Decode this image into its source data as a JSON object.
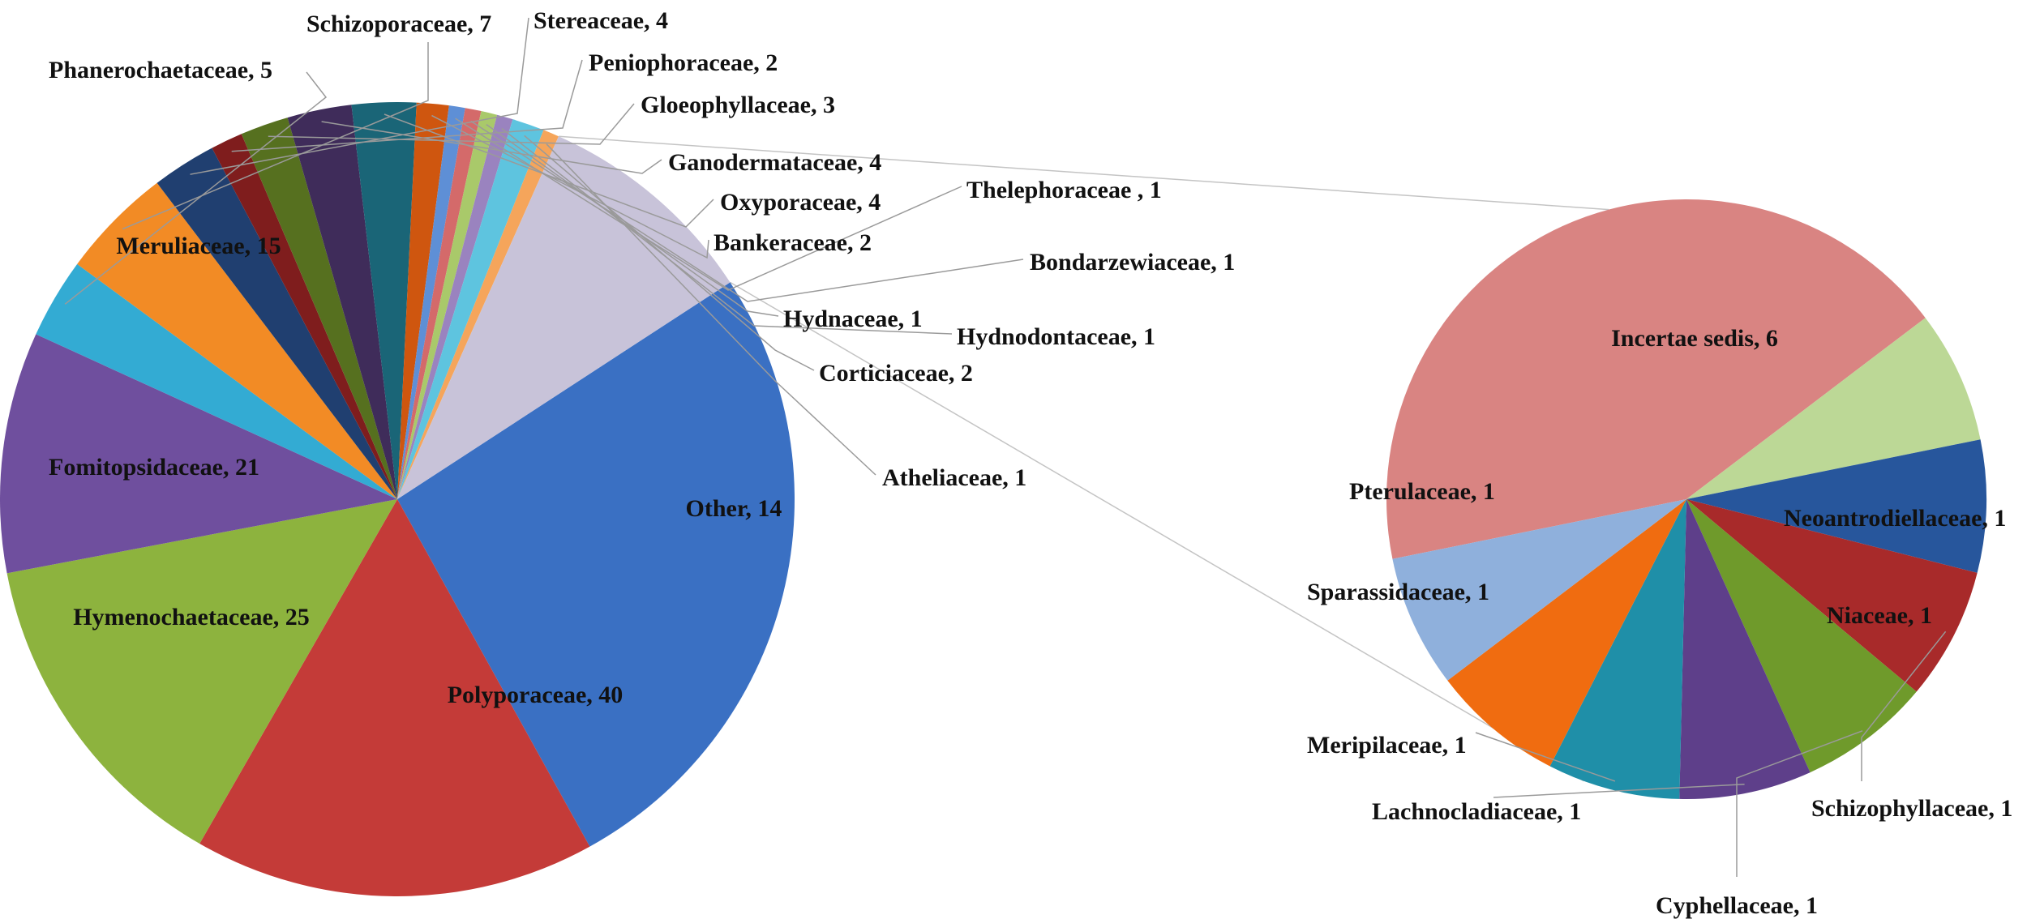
{
  "chart_data": {
    "type": "pie",
    "subtype": "pie-of-pie",
    "title": "",
    "legend": "none",
    "main_pie": {
      "slices": [
        {
          "name": "Polyporaceae",
          "value": 40,
          "label": "Polyporaceae, 40",
          "color": "#3a70c3"
        },
        {
          "name": "Hymenochaetaceae",
          "value": 25,
          "label": "Hymenochaetaceae, 25",
          "color": "#c43b38"
        },
        {
          "name": "Fomitopsidaceae",
          "value": 21,
          "label": "Fomitopsidaceae, 21",
          "color": "#8db33e"
        },
        {
          "name": "Meruliaceae",
          "value": 15,
          "label": "Meruliaceae, 15",
          "color": "#6f4f9e"
        },
        {
          "name": "Phanerochaetaceae",
          "value": 5,
          "label": "Phanerochaetaceae, 5",
          "color": "#33abd3"
        },
        {
          "name": "Schizoporaceae",
          "value": 7,
          "label": "Schizoporaceae, 7",
          "color": "#f28b25"
        },
        {
          "name": "Stereaceae",
          "value": 4,
          "label": "Stereaceae, 4",
          "color": "#203f70"
        },
        {
          "name": "Peniophoraceae",
          "value": 2,
          "label": "Peniophoraceae, 2",
          "color": "#7f1d1d"
        },
        {
          "name": "Gloeophyllaceae",
          "value": 3,
          "label": "Gloeophyllaceae, 3",
          "color": "#56701f"
        },
        {
          "name": "Ganodermataceae",
          "value": 4,
          "label": "Ganodermataceae, 4",
          "color": "#3f2c5a"
        },
        {
          "name": "Oxyporaceae",
          "value": 4,
          "label": "Oxyporaceae, 4",
          "color": "#1a6577"
        },
        {
          "name": "Bankeraceae",
          "value": 2,
          "label": "Bankeraceae, 2",
          "color": "#cf560f"
        },
        {
          "name": "Thelephoraceae",
          "value": 1,
          "label": "Thelephoraceae , 1",
          "color": "#5e8fd6"
        },
        {
          "name": "Bondarzewiaceae",
          "value": 1,
          "label": "Bondarzewiaceae, 1",
          "color": "#d46a6a"
        },
        {
          "name": "Hydnaceae",
          "value": 1,
          "label": "Hydnaceae, 1",
          "color": "#a9c96a"
        },
        {
          "name": "Hydnodontaceae",
          "value": 1,
          "label": "Hydnodontaceae, 1",
          "color": "#9a83bf"
        },
        {
          "name": "Corticiaceae",
          "value": 2,
          "label": "Corticiaceae, 2",
          "color": "#5ec4df"
        },
        {
          "name": "Atheliaceae",
          "value": 1,
          "label": "Atheliaceae, 1",
          "color": "#f5a55b"
        },
        {
          "name": "Other",
          "value": 14,
          "label": "Other, 14",
          "color": "#c8c3d9"
        }
      ]
    },
    "secondary_pie": {
      "slices": [
        {
          "name": "Incertae sedis",
          "value": 6,
          "label": "Incertae sedis, 6",
          "color": "#d98482"
        },
        {
          "name": "Neoantrodiellaceae",
          "value": 1,
          "label": "Neoantrodiellaceae, 1",
          "color": "#bcd896"
        },
        {
          "name": "Niaceae",
          "value": 1,
          "label": "Niaceae, 1",
          "color": "#27569c"
        },
        {
          "name": "Schizophyllaceae",
          "value": 1,
          "label": "Schizophyllaceae, 1",
          "color": "#a82a2a"
        },
        {
          "name": "Cyphellaceae",
          "value": 1,
          "label": "Cyphellaceae, 1",
          "color": "#6f9a2b"
        },
        {
          "name": "Lachnocladiaceae",
          "value": 1,
          "label": "Lachnocladiaceae, 1",
          "color": "#5e3f8a"
        },
        {
          "name": "Meripilaceae",
          "value": 1,
          "label": "Meripilaceae, 1",
          "color": "#1f8fa8"
        },
        {
          "name": "Sparassidaceae",
          "value": 1,
          "label": "Sparassidaceae, 1",
          "color": "#f06c10"
        },
        {
          "name": "Pterulaceae",
          "value": 1,
          "label": "Pterulaceae, 1",
          "color": "#8fb0dc"
        }
      ]
    }
  }
}
